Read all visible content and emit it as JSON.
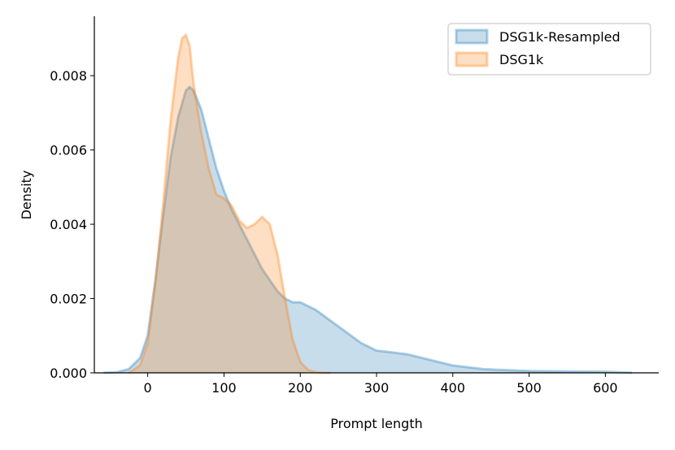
{
  "chart_data": {
    "type": "area",
    "title": "",
    "xlabel": "Prompt length",
    "ylabel": "Density",
    "xlim": [
      -70,
      670
    ],
    "ylim": [
      0,
      0.0096
    ],
    "xticks": [
      0,
      100,
      200,
      300,
      400,
      500,
      600
    ],
    "xtick_labels": [
      "0",
      "100",
      "200",
      "300",
      "400",
      "500",
      "600"
    ],
    "yticks": [
      0,
      0.002,
      0.004,
      0.006,
      0.008
    ],
    "ytick_labels": [
      "0.000",
      "0.002",
      "0.004",
      "0.006",
      "0.008"
    ],
    "grid": false,
    "legend_position": "top-right",
    "series": [
      {
        "name": "DSG1k-Resampled",
        "color": "#1f77b4",
        "x": [
          -58,
          -40,
          -25,
          -10,
          0,
          10,
          20,
          30,
          40,
          50,
          55,
          60,
          70,
          80,
          90,
          100,
          110,
          120,
          130,
          140,
          150,
          160,
          170,
          180,
          190,
          200,
          210,
          220,
          240,
          260,
          280,
          300,
          320,
          340,
          360,
          380,
          400,
          420,
          440,
          460,
          500,
          550,
          600,
          635
        ],
        "y": [
          0.0,
          2e-05,
          0.0001,
          0.0004,
          0.001,
          0.0025,
          0.0042,
          0.0058,
          0.0069,
          0.0076,
          0.0077,
          0.0076,
          0.0071,
          0.0063,
          0.0055,
          0.0049,
          0.0044,
          0.004,
          0.0036,
          0.0032,
          0.0028,
          0.0025,
          0.0022,
          0.002,
          0.0019,
          0.0019,
          0.0018,
          0.0017,
          0.0014,
          0.0011,
          0.0008,
          0.0006,
          0.00055,
          0.0005,
          0.0004,
          0.0003,
          0.0002,
          0.00015,
          0.0001,
          8e-05,
          5e-05,
          4e-05,
          3e-05,
          0.0
        ]
      },
      {
        "name": "DSG1k",
        "color": "#ff7f0e",
        "x": [
          -25,
          -10,
          0,
          10,
          20,
          30,
          40,
          45,
          50,
          55,
          60,
          70,
          80,
          90,
          100,
          110,
          120,
          130,
          140,
          150,
          160,
          170,
          180,
          190,
          200,
          210,
          220,
          230,
          240
        ],
        "y": [
          0.0,
          0.0002,
          0.0008,
          0.0024,
          0.0045,
          0.0068,
          0.0085,
          0.009,
          0.0091,
          0.0088,
          0.0078,
          0.0065,
          0.0055,
          0.0048,
          0.0047,
          0.0045,
          0.0041,
          0.0039,
          0.004,
          0.0042,
          0.004,
          0.0032,
          0.002,
          0.0009,
          0.0003,
          8e-05,
          2e-05,
          0.0,
          0.0
        ]
      }
    ]
  }
}
